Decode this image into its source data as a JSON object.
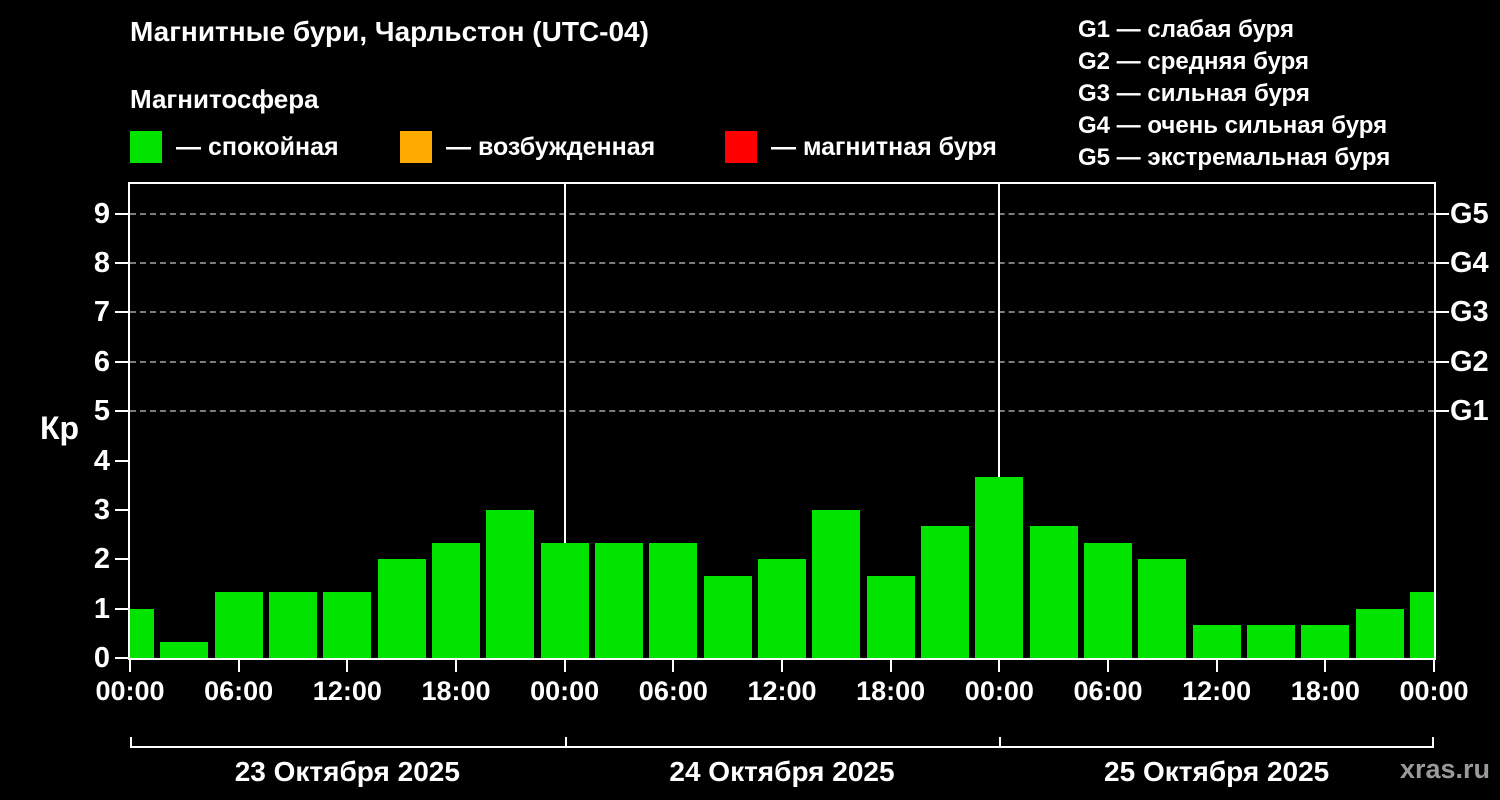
{
  "header": {
    "title": "Магнитные бури, Чарльстон (UTC-04)",
    "subtitle": "Магнитосфера"
  },
  "legend": {
    "items": [
      {
        "label": "— спокойная",
        "color": "#00e400"
      },
      {
        "label": "— возбужденная",
        "color": "#ffaa00"
      },
      {
        "label": "— магнитная буря",
        "color": "#ff0000"
      }
    ]
  },
  "storm_scale": {
    "items": [
      "G1 — слабая буря",
      "G2 — средняя буря",
      "G3 — сильная буря",
      "G4 — очень сильная буря",
      "G5 — экстремальная буря"
    ]
  },
  "watermark": "xras.ru",
  "chart_data": {
    "type": "bar",
    "title": "Магнитные бури, Чарльстон (UTC-04)",
    "subtitle": "Магнитосфера",
    "ylabel": "Кр",
    "ylim": [
      0,
      9.6
    ],
    "yticks": [
      0,
      1,
      2,
      3,
      4,
      5,
      6,
      7,
      8,
      9
    ],
    "grid": "dashed horizontal lines at Kp 5-9 only",
    "legend_position": "top",
    "g_levels": [
      {
        "label": "G1",
        "kp": 5
      },
      {
        "label": "G2",
        "kp": 6
      },
      {
        "label": "G3",
        "kp": 7
      },
      {
        "label": "G4",
        "kp": 8
      },
      {
        "label": "G5",
        "kp": 9
      }
    ],
    "x_tick_labels": [
      "00:00",
      "06:00",
      "12:00",
      "18:00",
      "00:00",
      "06:00",
      "12:00",
      "18:00",
      "00:00",
      "06:00",
      "12:00",
      "18:00",
      "00:00"
    ],
    "bar_interval_hours": 3,
    "bar_color": "#00e400",
    "values": [
      1.0,
      0.33,
      1.33,
      1.33,
      1.33,
      2.0,
      2.33,
      3.0,
      2.33,
      2.33,
      2.33,
      1.67,
      2.0,
      3.0,
      1.67,
      2.67,
      3.67,
      2.67,
      2.33,
      2.0,
      0.67,
      0.67,
      0.67,
      1.0,
      1.33
    ],
    "day_labels": [
      "23 Октября 2025",
      "24 Октября 2025",
      "25 Октября 2025"
    ]
  }
}
